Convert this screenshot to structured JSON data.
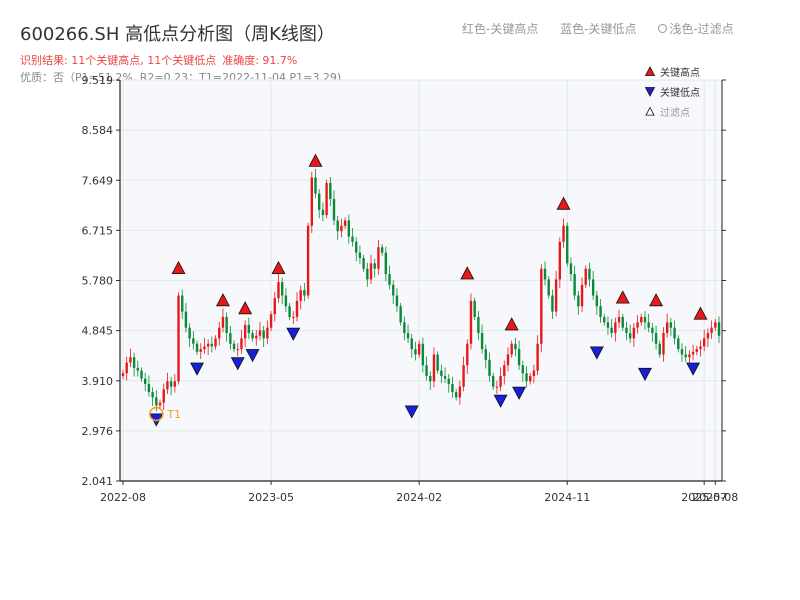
{
  "header": {
    "title": "600266.SH 高低点分析图（周K线图）",
    "top_legend": {
      "red": "红色-关键高点",
      "blue": "蓝色-关键低点",
      "light": "浅色-过滤点"
    },
    "result_line": "识别结果: 11个关键高点, 11个关键低点",
    "accuracy": "准确度: 91.7%",
    "quality_line": "优质：否（P1=51.2%, R2=0.23；T1=2022-11-04 P1=3.29)"
  },
  "chart_data": {
    "type": "candlestick",
    "title": "600266.SH 高低点分析图（周K线图）",
    "ylim": [
      2.041,
      9.519
    ],
    "y_ticks": [
      2.041,
      2.976,
      3.91,
      4.845,
      5.78,
      6.715,
      7.649,
      8.584,
      9.519
    ],
    "y_tick_labels": [
      "2.041",
      "2.976",
      "3.910",
      "4.845",
      "5.780",
      "6.715",
      "7.649",
      "8.584",
      "9.519"
    ],
    "x_tick_labels": [
      "2022-08",
      "2023-05",
      "2024-02",
      "2024-11",
      "2025-07",
      "2025-08"
    ],
    "x_tick_positions": [
      0,
      40,
      80,
      120,
      157,
      160
    ],
    "legend": {
      "placement": "top-right",
      "items": [
        {
          "label": "关键高点",
          "color": "#e8171a",
          "shape": "triangle-up"
        },
        {
          "label": "关键低点",
          "color": "#1620d8",
          "shape": "triangle-down"
        },
        {
          "label": "过滤点",
          "color": "#ffffff",
          "shape": "triangle-up-outline"
        }
      ]
    },
    "colors": {
      "up": "#e8171a",
      "down": "#0a8a38",
      "high_marker": "#e8171a",
      "low_marker": "#1620d8",
      "t1_marker": "#f0a020"
    },
    "t1_label": "T1",
    "t1": {
      "index": 9,
      "value": 3.29
    },
    "key_highs": [
      {
        "index": 15,
        "value": 5.85
      },
      {
        "index": 27,
        "value": 5.25
      },
      {
        "index": 33,
        "value": 5.1
      },
      {
        "index": 42,
        "value": 5.85
      },
      {
        "index": 52,
        "value": 7.85
      },
      {
        "index": 93,
        "value": 5.75
      },
      {
        "index": 105,
        "value": 4.8
      },
      {
        "index": 119,
        "value": 7.05
      },
      {
        "index": 135,
        "value": 5.3
      },
      {
        "index": 144,
        "value": 5.25
      },
      {
        "index": 156,
        "value": 5.0
      }
    ],
    "key_lows": [
      {
        "index": 9,
        "value": 3.35
      },
      {
        "index": 20,
        "value": 4.3
      },
      {
        "index": 31,
        "value": 4.4
      },
      {
        "index": 35,
        "value": 4.55
      },
      {
        "index": 46,
        "value": 4.95
      },
      {
        "index": 78,
        "value": 3.5
      },
      {
        "index": 102,
        "value": 3.7
      },
      {
        "index": 107,
        "value": 3.85
      },
      {
        "index": 128,
        "value": 4.6
      },
      {
        "index": 141,
        "value": 4.2
      },
      {
        "index": 154,
        "value": 4.3
      }
    ],
    "series": [
      {
        "name": "close",
        "values": [
          4.05,
          4.25,
          4.35,
          4.15,
          4.1,
          3.95,
          3.85,
          3.7,
          3.6,
          3.45,
          3.5,
          3.75,
          3.9,
          3.8,
          3.9,
          5.5,
          5.2,
          4.9,
          4.7,
          4.6,
          4.45,
          4.5,
          4.55,
          4.6,
          4.55,
          4.7,
          4.9,
          5.1,
          4.8,
          4.6,
          4.5,
          4.5,
          4.7,
          4.95,
          4.8,
          4.7,
          4.75,
          4.85,
          4.7,
          4.9,
          5.15,
          5.45,
          5.75,
          5.5,
          5.3,
          5.1,
          5.1,
          5.4,
          5.6,
          5.5,
          6.8,
          7.7,
          7.4,
          7.1,
          7.0,
          7.6,
          7.3,
          6.9,
          6.7,
          6.8,
          6.9,
          6.6,
          6.5,
          6.3,
          6.2,
          6.0,
          5.8,
          6.1,
          6.0,
          6.4,
          6.3,
          5.9,
          5.7,
          5.5,
          5.3,
          5.0,
          4.8,
          4.7,
          4.5,
          4.4,
          4.6,
          4.2,
          4.0,
          3.9,
          4.4,
          4.1,
          4.0,
          3.95,
          3.85,
          3.7,
          3.6,
          3.8,
          4.2,
          4.6,
          5.4,
          5.1,
          4.8,
          4.5,
          4.3,
          4.0,
          3.8,
          3.8,
          4.0,
          4.2,
          4.4,
          4.6,
          4.5,
          4.2,
          4.05,
          3.9,
          4.0,
          4.1,
          4.6,
          6.0,
          5.8,
          5.5,
          5.2,
          5.8,
          6.5,
          6.8,
          6.1,
          5.9,
          5.5,
          5.3,
          5.7,
          6.0,
          5.8,
          5.5,
          5.3,
          5.1,
          5.0,
          4.9,
          4.8,
          5.0,
          5.1,
          4.9,
          4.8,
          4.7,
          4.9,
          5.0,
          5.1,
          5.0,
          4.9,
          4.8,
          4.6,
          4.4,
          4.8,
          5.0,
          4.9,
          4.7,
          4.5,
          4.4,
          4.35,
          4.4,
          4.45,
          4.5,
          4.55,
          4.7,
          4.8,
          4.9,
          5.0,
          4.75
        ]
      }
    ]
  }
}
